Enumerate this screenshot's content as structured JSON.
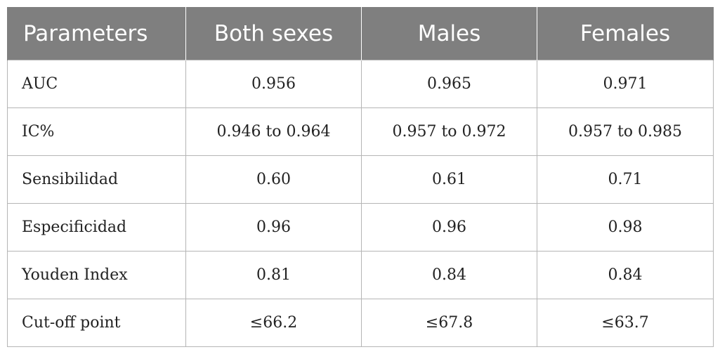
{
  "table": {
    "headers": [
      "Parameters",
      "Both sexes",
      "Males",
      "Females"
    ],
    "rows": [
      [
        "AUC",
        "0.956",
        "0.965",
        "0.971"
      ],
      [
        "IC%",
        "0.946 to 0.964",
        "0.957 to 0.972",
        "0.957 to 0.985"
      ],
      [
        "Sensibilidad",
        "0.60",
        "0.61",
        "0.71"
      ],
      [
        "Especificidad",
        "0.96",
        "0.96",
        "0.98"
      ],
      [
        "Youden Index",
        "0.81",
        "0.84",
        "0.84"
      ],
      [
        "Cut-off point",
        "≤66.2",
        "≤67.8",
        "≤63.7"
      ]
    ]
  },
  "colors": {
    "header_bg": "#7f7f7f",
    "header_text": "#ffffff",
    "grid": "#b5b5b5",
    "body_text": "#222222"
  }
}
